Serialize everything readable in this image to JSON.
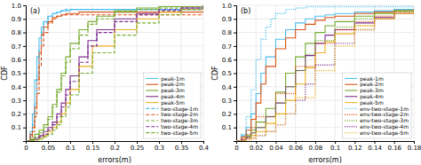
{
  "chart_data": [
    {
      "type": "step",
      "title": "(a)",
      "x_label": "errors(m)",
      "y_label": "CDF",
      "xlim": [
        0,
        0.4
      ],
      "ylim": [
        0,
        1.0
      ],
      "xticks": [
        0,
        0.05,
        0.1,
        0.15,
        0.2,
        0.25,
        0.3,
        0.35,
        0.4
      ],
      "yticks": [
        0.1,
        0.2,
        0.3,
        0.4,
        0.5,
        0.6,
        0.7,
        0.8,
        0.9,
        {
          "value": 1.0,
          "label": "1.0"
        }
      ],
      "grid": true,
      "legend": "lower right",
      "series": [
        {
          "name": "peak-1m",
          "color": "#4DBEEE",
          "line_style": "solid",
          "x": [
            0.0,
            0.01,
            0.015,
            0.02,
            0.025,
            0.03,
            0.035,
            0.04,
            0.05,
            0.06,
            0.07,
            0.08,
            0.09,
            0.1,
            0.12,
            0.15,
            0.2,
            0.3,
            0.4
          ],
          "values": [
            0.0,
            0.07,
            0.2,
            0.45,
            0.62,
            0.76,
            0.84,
            0.88,
            0.92,
            0.94,
            0.95,
            0.96,
            0.96,
            0.97,
            0.97,
            0.97,
            0.97,
            0.97,
            0.97
          ]
        },
        {
          "name": "peak-2m",
          "color": "#D95319",
          "line_style": "solid",
          "x": [
            0.0,
            0.01,
            0.015,
            0.02,
            0.025,
            0.03,
            0.035,
            0.04,
            0.05,
            0.06,
            0.07,
            0.08,
            0.09,
            0.1,
            0.12,
            0.15,
            0.2,
            0.3,
            0.4
          ],
          "values": [
            0.0,
            0.05,
            0.1,
            0.25,
            0.45,
            0.65,
            0.78,
            0.84,
            0.88,
            0.91,
            0.92,
            0.93,
            0.94,
            0.94,
            0.95,
            0.95,
            0.95,
            0.95,
            0.95
          ]
        },
        {
          "name": "peak-3m",
          "color": "#77AC30",
          "line_style": "solid",
          "x": [
            0.0,
            0.01,
            0.02,
            0.03,
            0.04,
            0.05,
            0.06,
            0.07,
            0.08,
            0.09,
            0.1,
            0.12,
            0.14,
            0.16,
            0.2,
            0.25,
            0.3,
            0.35,
            0.4
          ],
          "values": [
            0.0,
            0.02,
            0.05,
            0.08,
            0.12,
            0.18,
            0.27,
            0.38,
            0.5,
            0.62,
            0.72,
            0.82,
            0.88,
            0.92,
            0.96,
            0.98,
            0.99,
            0.99,
            1.0
          ]
        },
        {
          "name": "peak-4m",
          "color": "#7E2F8E",
          "line_style": "solid",
          "x": [
            0.0,
            0.01,
            0.02,
            0.03,
            0.04,
            0.05,
            0.06,
            0.07,
            0.08,
            0.09,
            0.1,
            0.12,
            0.14,
            0.16,
            0.2,
            0.25,
            0.3,
            0.35,
            0.4
          ],
          "values": [
            0.0,
            0.01,
            0.02,
            0.04,
            0.07,
            0.1,
            0.14,
            0.2,
            0.28,
            0.38,
            0.48,
            0.62,
            0.74,
            0.82,
            0.9,
            0.94,
            0.97,
            0.98,
            1.0
          ]
        },
        {
          "name": "peak-5m",
          "color": "#EDB120",
          "line_style": "solid",
          "x": [
            0.0,
            0.01,
            0.02,
            0.03,
            0.04,
            0.05,
            0.06,
            0.07,
            0.08,
            0.09,
            0.1,
            0.12,
            0.15,
            0.2,
            0.25,
            0.3,
            0.35,
            0.4
          ],
          "values": [
            0.0,
            0.005,
            0.01,
            0.02,
            0.04,
            0.07,
            0.1,
            0.14,
            0.2,
            0.28,
            0.38,
            0.55,
            0.7,
            0.82,
            0.9,
            0.95,
            0.97,
            0.99
          ]
        },
        {
          "name": "two-stage-1m",
          "color": "#4DBEEE",
          "line_style": "dashed",
          "x": [
            0.0,
            0.01,
            0.015,
            0.02,
            0.025,
            0.03,
            0.035,
            0.04,
            0.05,
            0.06,
            0.07,
            0.08,
            0.09,
            0.1,
            0.12,
            0.15,
            0.2,
            0.3,
            0.4
          ],
          "values": [
            0.0,
            0.04,
            0.12,
            0.28,
            0.48,
            0.67,
            0.8,
            0.87,
            0.92,
            0.94,
            0.95,
            0.96,
            0.97,
            0.97,
            0.97,
            0.97,
            0.97,
            0.97,
            0.97
          ]
        },
        {
          "name": "two-stage-2m",
          "color": "#D95319",
          "line_style": "dashed",
          "x": [
            0.0,
            0.01,
            0.015,
            0.02,
            0.025,
            0.03,
            0.035,
            0.04,
            0.05,
            0.06,
            0.07,
            0.08,
            0.09,
            0.1,
            0.12,
            0.15,
            0.2,
            0.3,
            0.4
          ],
          "values": [
            0.0,
            0.03,
            0.07,
            0.18,
            0.35,
            0.55,
            0.7,
            0.8,
            0.87,
            0.9,
            0.92,
            0.93,
            0.93,
            0.93,
            0.93,
            0.93,
            0.93,
            0.93,
            0.93
          ]
        },
        {
          "name": "two-stage-3m",
          "color": "#77AC30",
          "line_style": "dashed",
          "x": [
            0.0,
            0.01,
            0.02,
            0.03,
            0.04,
            0.05,
            0.06,
            0.07,
            0.08,
            0.09,
            0.1,
            0.12,
            0.14,
            0.16,
            0.2,
            0.25,
            0.3,
            0.35,
            0.4
          ],
          "values": [
            0.0,
            0.01,
            0.03,
            0.06,
            0.1,
            0.16,
            0.25,
            0.36,
            0.48,
            0.58,
            0.68,
            0.78,
            0.86,
            0.9,
            0.95,
            0.97,
            0.98,
            0.99,
            1.0
          ]
        },
        {
          "name": "two-stage-4m",
          "color": "#7E2F8E",
          "line_style": "dashed",
          "x": [
            0.0,
            0.01,
            0.02,
            0.03,
            0.04,
            0.05,
            0.06,
            0.07,
            0.08,
            0.09,
            0.1,
            0.12,
            0.14,
            0.16,
            0.2,
            0.25,
            0.3,
            0.35,
            0.4
          ],
          "values": [
            0.0,
            0.005,
            0.01,
            0.03,
            0.05,
            0.08,
            0.12,
            0.18,
            0.25,
            0.34,
            0.44,
            0.58,
            0.7,
            0.8,
            0.88,
            0.93,
            0.96,
            0.98,
            1.0
          ]
        },
        {
          "name": "two-stage-5m",
          "color": "#77AC30",
          "line_style": "dashed",
          "x": [
            0.0,
            0.01,
            0.02,
            0.03,
            0.04,
            0.05,
            0.06,
            0.07,
            0.08,
            0.09,
            0.1,
            0.12,
            0.15,
            0.2,
            0.25,
            0.3,
            0.35,
            0.4
          ],
          "values": [
            0.0,
            0.003,
            0.008,
            0.015,
            0.03,
            0.05,
            0.08,
            0.12,
            0.18,
            0.25,
            0.34,
            0.5,
            0.65,
            0.78,
            0.87,
            0.93,
            0.97,
            0.99
          ]
        }
      ]
    },
    {
      "type": "step",
      "title": "(b)",
      "x_label": "errors(m)",
      "y_label": "CDF",
      "xlim": [
        0,
        0.18
      ],
      "ylim": [
        0,
        1.0
      ],
      "xticks": [
        0,
        0.02,
        0.04,
        0.06,
        0.08,
        0.1,
        0.12,
        0.14,
        0.16,
        0.18
      ],
      "yticks": [
        0.1,
        0.2,
        0.3,
        0.4,
        0.5,
        0.6,
        0.7,
        0.8,
        0.9,
        {
          "value": 1.0,
          "label": "1.0"
        }
      ],
      "grid": true,
      "legend": "lower right",
      "series": [
        {
          "name": "peak-1m",
          "color": "#4DBEEE",
          "line_style": "solid",
          "x": [
            0.0,
            0.005,
            0.01,
            0.015,
            0.02,
            0.025,
            0.03,
            0.04,
            0.05,
            0.06,
            0.07,
            0.08,
            0.09,
            0.1,
            0.12,
            0.14,
            0.16,
            0.18
          ],
          "values": [
            0.0,
            0.04,
            0.1,
            0.2,
            0.35,
            0.5,
            0.62,
            0.75,
            0.82,
            0.87,
            0.9,
            0.92,
            0.93,
            0.94,
            0.95,
            0.96,
            0.97,
            0.97
          ]
        },
        {
          "name": "peak-2m",
          "color": "#D95319",
          "line_style": "solid",
          "x": [
            0.0,
            0.005,
            0.01,
            0.015,
            0.02,
            0.025,
            0.03,
            0.04,
            0.05,
            0.06,
            0.07,
            0.08,
            0.09,
            0.1,
            0.12,
            0.14,
            0.16,
            0.18
          ],
          "values": [
            0.0,
            0.03,
            0.08,
            0.16,
            0.28,
            0.42,
            0.55,
            0.68,
            0.76,
            0.82,
            0.86,
            0.89,
            0.91,
            0.92,
            0.94,
            0.95,
            0.96,
            0.97
          ]
        },
        {
          "name": "peak-3m",
          "color": "#77AC30",
          "line_style": "solid",
          "x": [
            0.0,
            0.005,
            0.01,
            0.015,
            0.02,
            0.03,
            0.04,
            0.05,
            0.06,
            0.07,
            0.08,
            0.09,
            0.1,
            0.12,
            0.14,
            0.16,
            0.18
          ],
          "values": [
            0.0,
            0.01,
            0.04,
            0.08,
            0.14,
            0.24,
            0.36,
            0.5,
            0.62,
            0.72,
            0.8,
            0.85,
            0.88,
            0.92,
            0.94,
            0.96,
            0.97
          ]
        },
        {
          "name": "peak-4m",
          "color": "#7E2F8E",
          "line_style": "solid",
          "x": [
            0.0,
            0.005,
            0.01,
            0.015,
            0.02,
            0.03,
            0.04,
            0.05,
            0.06,
            0.07,
            0.08,
            0.09,
            0.1,
            0.12,
            0.14,
            0.16,
            0.18
          ],
          "values": [
            0.0,
            0.01,
            0.03,
            0.06,
            0.1,
            0.18,
            0.28,
            0.4,
            0.52,
            0.63,
            0.72,
            0.78,
            0.82,
            0.87,
            0.91,
            0.94,
            0.97
          ]
        },
        {
          "name": "peak-5m",
          "color": "#EDB120",
          "line_style": "solid",
          "x": [
            0.0,
            0.005,
            0.01,
            0.015,
            0.02,
            0.03,
            0.04,
            0.05,
            0.06,
            0.07,
            0.08,
            0.09,
            0.1,
            0.12,
            0.14,
            0.16,
            0.18
          ],
          "values": [
            0.0,
            0.005,
            0.02,
            0.04,
            0.07,
            0.13,
            0.2,
            0.3,
            0.42,
            0.54,
            0.65,
            0.73,
            0.79,
            0.85,
            0.9,
            0.94,
            0.97
          ]
        },
        {
          "name": "env-two-stage-1m",
          "color": "#4DBEEE",
          "line_style": "dotted",
          "x": [
            0.0,
            0.005,
            0.01,
            0.015,
            0.02,
            0.025,
            0.03,
            0.035,
            0.04,
            0.05,
            0.06,
            0.07,
            0.08,
            0.1,
            0.12,
            0.14,
            0.16,
            0.18
          ],
          "values": [
            0.0,
            0.05,
            0.18,
            0.38,
            0.6,
            0.75,
            0.84,
            0.9,
            0.94,
            0.97,
            0.98,
            0.99,
            0.99,
            0.99,
            0.99,
            0.99,
            0.99,
            0.99
          ]
        },
        {
          "name": "env-two-stage-2m",
          "color": "#D95319",
          "line_style": "dotted",
          "x": [
            0.0,
            0.005,
            0.01,
            0.015,
            0.02,
            0.04,
            0.06,
            0.08,
            0.1,
            0.12,
            0.14,
            0.16,
            0.18
          ],
          "values": [
            0.0,
            0.02,
            0.05,
            0.1,
            0.18,
            0.35,
            0.55,
            0.72,
            0.82,
            0.88,
            0.92,
            0.95,
            0.97
          ]
        },
        {
          "name": "env-two-stage-3m",
          "color": "#77AC30",
          "line_style": "dotted",
          "x": [
            0.0,
            0.005,
            0.01,
            0.015,
            0.02,
            0.03,
            0.04,
            0.05,
            0.06,
            0.07,
            0.08,
            0.1,
            0.12,
            0.14,
            0.16,
            0.18
          ],
          "values": [
            0.0,
            0.01,
            0.03,
            0.06,
            0.1,
            0.18,
            0.28,
            0.4,
            0.52,
            0.64,
            0.74,
            0.84,
            0.9,
            0.94,
            0.96,
            0.98
          ]
        },
        {
          "name": "env-two-stage-4m",
          "color": "#7E2F8E",
          "line_style": "dotted",
          "x": [
            0.0,
            0.005,
            0.01,
            0.02,
            0.03,
            0.04,
            0.05,
            0.06,
            0.07,
            0.08,
            0.1,
            0.12,
            0.14,
            0.16,
            0.18
          ],
          "values": [
            0.0,
            0.01,
            0.02,
            0.04,
            0.07,
            0.12,
            0.2,
            0.3,
            0.42,
            0.56,
            0.72,
            0.82,
            0.9,
            0.95,
            0.98
          ]
        },
        {
          "name": "env-two-stage-5m",
          "color": "#EDB120",
          "line_style": "dotted",
          "x": [
            0.0,
            0.005,
            0.01,
            0.015,
            0.02,
            0.03,
            0.04,
            0.05,
            0.06,
            0.08,
            0.1,
            0.12,
            0.14,
            0.16,
            0.18
          ],
          "values": [
            0.0,
            0.005,
            0.01,
            0.02,
            0.04,
            0.07,
            0.12,
            0.2,
            0.32,
            0.52,
            0.7,
            0.82,
            0.9,
            0.95,
            0.98
          ]
        }
      ]
    }
  ]
}
